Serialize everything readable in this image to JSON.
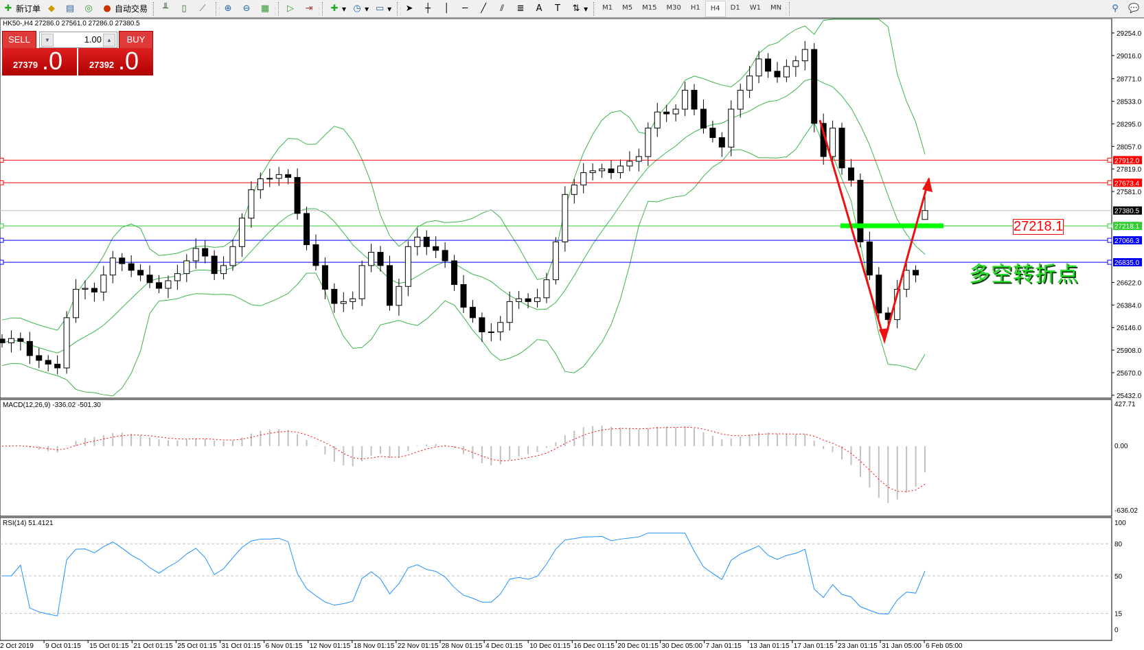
{
  "toolbar": {
    "new_order": "新订单",
    "auto_trading": "自动交易",
    "timeframes": [
      "M1",
      "M5",
      "M15",
      "M30",
      "H1",
      "H4",
      "D1",
      "W1",
      "MN"
    ],
    "active_timeframe": "H4",
    "icons": [
      "new-order-icon",
      "market-watch-icon",
      "navigator-icon",
      "signal-icon",
      "auto-trading-icon",
      "bar-chart-icon",
      "candlestick-icon",
      "line-chart-icon",
      "zoom-in-icon",
      "zoom-out-icon",
      "tile-windows-icon",
      "auto-scroll-icon",
      "chart-shift-icon",
      "add-indicator-icon",
      "periods-icon",
      "templates-icon",
      "cursor-icon",
      "crosshair-icon",
      "vertical-line-icon",
      "horizontal-line-icon",
      "trendline-icon",
      "equidistant-channel-icon",
      "fibonacci-icon",
      "text-icon",
      "text-label-icon",
      "arrows-icon",
      "search-icon",
      "chat-icon"
    ]
  },
  "header": {
    "symbol_info": "HK50-,H4  27286.0 27561.0 27286.0 27380.5"
  },
  "trade_panel": {
    "sell_label": "SELL",
    "buy_label": "BUY",
    "lot": "1.00",
    "sell_price_main": "27379",
    "sell_price_frac": ".0",
    "buy_price_main": "27392",
    "buy_price_frac": ".0"
  },
  "annotations": {
    "level_label": "27218.1",
    "pivot_text": "多空转折点"
  },
  "colors": {
    "bollinger": "#3cb44b",
    "macd_hist": "#c0c0c0",
    "macd_signal": "#ff0000",
    "rsi": "#1e90ff",
    "resistance": "#ff0000",
    "pivot": "#33cc33",
    "support": "#0000ff",
    "annotation_arrow": "#ee1111",
    "annotation_bar": "#00ff00"
  },
  "chart_data": {
    "type": "candlestick",
    "symbol": "HK50-",
    "timeframe": "H4",
    "ylim": [
      25432,
      29300
    ],
    "price_ticks": [
      "29254.0",
      "29016.0",
      "28771.0",
      "28533.0",
      "28295.0",
      "28057.0",
      "27819.0",
      "27581.0",
      "26622.0",
      "26384.0",
      "26146.0",
      "25908.0",
      "25670.0",
      "25432.0"
    ],
    "x_tick_labels": [
      "2 Oct 2019",
      "9 Oct 01:15",
      "15 Oct 01:15",
      "21 Oct 01:15",
      "25 Oct 01:15",
      "31 Oct 01:15",
      "6 Nov 01:15",
      "12 Nov 01:15",
      "18 Nov 01:15",
      "22 Nov 01:15",
      "28 Nov 01:15",
      "4 Dec 01:15",
      "10 Dec 01:15",
      "16 Dec 01:15",
      "20 Dec 01:15",
      "30 Dec 05:00",
      "7 Jan 01:15",
      "13 Jan 01:15",
      "17 Jan 01:15",
      "23 Jan 01:15",
      "31 Jan 05:00",
      "6 Feb 05:00"
    ],
    "closes": [
      25985,
      26030,
      26000,
      25850,
      25800,
      25760,
      25720,
      26250,
      26550,
      26560,
      26520,
      26700,
      26880,
      26820,
      26750,
      26700,
      26620,
      26560,
      26640,
      26715,
      26850,
      26980,
      26900,
      26715,
      26800,
      27000,
      27300,
      27600,
      27715,
      27720,
      27760,
      27730,
      27350,
      27020,
      26800,
      26550,
      26400,
      26420,
      26450,
      26800,
      26940,
      26800,
      26380,
      26580,
      27000,
      27100,
      27000,
      26960,
      26850,
      26600,
      26360,
      26250,
      26100,
      26100,
      26200,
      26420,
      26450,
      26420,
      26460,
      26650,
      27050,
      27550,
      27650,
      27780,
      27800,
      27820,
      27780,
      27850,
      27900,
      27950,
      28250,
      28420,
      28400,
      28450,
      28650,
      28450,
      28250,
      28150,
      28050,
      28450,
      28650,
      28800,
      28980,
      28850,
      28790,
      28900,
      28960,
      29080,
      28300,
      27950,
      28250,
      27830,
      27700,
      27050,
      26700,
      26300,
      26230,
      26550,
      26750,
      26700,
      27380.5
    ],
    "last_bar": {
      "open": 27286.0,
      "high": 27561.0,
      "low": 27286.0,
      "close": 27380.5
    },
    "levels": [
      {
        "price": 27912.0,
        "label": "27912.0",
        "color": "#ff0000"
      },
      {
        "price": 27673.4,
        "label": "27673.4",
        "color": "#ff0000"
      },
      {
        "price": 27218.1,
        "label": "27218.1",
        "color": "#33cc33"
      },
      {
        "price": 27066.3,
        "label": "27066.3",
        "color": "#0000ff"
      },
      {
        "price": 26835.0,
        "label": "26835.0",
        "color": "#0000ff"
      }
    ],
    "current_price": {
      "price": 27380.5,
      "label": "27380.5"
    },
    "indicators": {
      "bollinger": {
        "shown": true
      },
      "macd": {
        "label": "MACD(12,26,9) -336.02 -501.30",
        "ticks": [
          "427.71",
          "0.00",
          "-636.02"
        ],
        "range": [
          -636.02,
          427.71
        ]
      },
      "rsi": {
        "label": "RSI(14) 51.4121",
        "ticks": [
          "100",
          "80",
          "50",
          "15",
          "0"
        ],
        "levels": [
          80,
          50,
          15
        ]
      }
    }
  }
}
